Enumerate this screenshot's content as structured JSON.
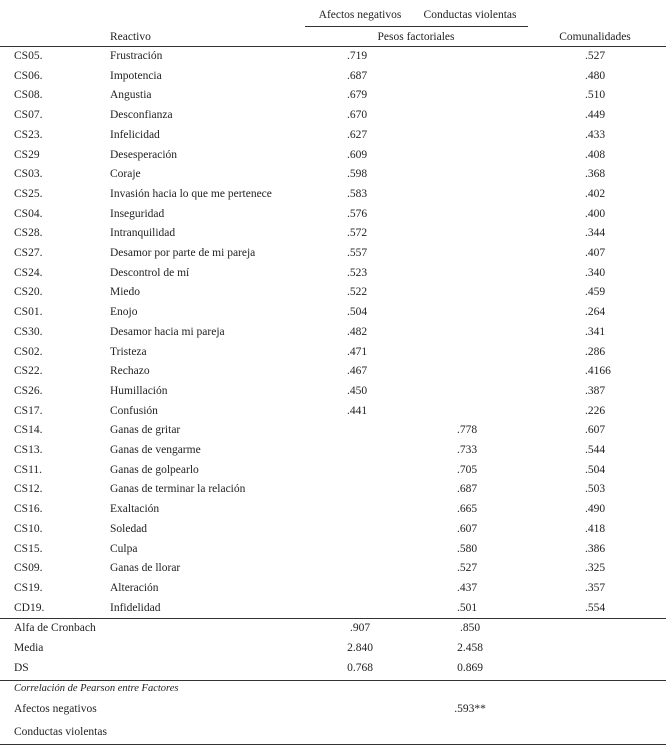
{
  "table": {
    "header": {
      "factor1": "Afectos negativos",
      "factor2": "Conductas violentas",
      "item": "Reactivo",
      "loadings": "Pesos factoriales",
      "communality": "Comunalidades"
    },
    "rows": [
      [
        "CS05.",
        "Frustración",
        ".719",
        null,
        ".527"
      ],
      [
        "CS06.",
        "Impotencia",
        ".687",
        null,
        ".480"
      ],
      [
        "CS08.",
        "Angustia",
        ".679",
        null,
        ".510"
      ],
      [
        "CS07.",
        "Desconfianza",
        ".670",
        null,
        ".449"
      ],
      [
        "CS23.",
        "Infelicidad",
        ".627",
        null,
        ".433"
      ],
      [
        "CS29",
        "Desesperación",
        ".609",
        null,
        ".408"
      ],
      [
        "CS03.",
        "Coraje",
        ".598",
        null,
        ".368"
      ],
      [
        "CS25.",
        "Invasión hacia lo que me pertenece",
        ".583",
        null,
        ".402"
      ],
      [
        "CS04.",
        "Inseguridad",
        ".576",
        null,
        ".400"
      ],
      [
        "CS28.",
        "Intranquilidad",
        ".572",
        null,
        ".344"
      ],
      [
        "CS27.",
        "Desamor por parte de mi pareja",
        ".557",
        null,
        ".407"
      ],
      [
        "CS24.",
        "Descontrol de mí",
        ".523",
        null,
        ".340"
      ],
      [
        "CS20.",
        "Miedo",
        ".522",
        null,
        ".459"
      ],
      [
        "CS01.",
        "Enojo",
        ".504",
        null,
        ".264"
      ],
      [
        "CS30.",
        "Desamor hacia mi pareja",
        ".482",
        null,
        ".341"
      ],
      [
        "CS02.",
        "Tristeza",
        ".471",
        null,
        ".286"
      ],
      [
        "CS22.",
        "Rechazo",
        ".467",
        null,
        ".4166"
      ],
      [
        "CS26.",
        "Humillación",
        ".450",
        null,
        ".387"
      ],
      [
        "CS17.",
        "Confusión",
        ".441",
        null,
        ".226"
      ],
      [
        "CS14.",
        "Ganas de gritar",
        null,
        ".778",
        ".607"
      ],
      [
        "CS13.",
        "Ganas de vengarme",
        null,
        ".733",
        ".544"
      ],
      [
        "CS11.",
        "Ganas de golpearlo",
        null,
        ".705",
        ".504"
      ],
      [
        "CS12.",
        "Ganas de terminar la relación",
        null,
        ".687",
        ".503"
      ],
      [
        "CS16.",
        "Exaltación",
        null,
        ".665",
        ".490"
      ],
      [
        "CS10.",
        "Soledad",
        null,
        ".607",
        ".418"
      ],
      [
        "CS15.",
        "Culpa",
        null,
        ".580",
        ".386"
      ],
      [
        "CS09.",
        "Ganas de llorar",
        null,
        ".527",
        ".325"
      ],
      [
        "CS19.",
        "Alteración",
        null,
        ".437",
        ".357"
      ],
      [
        "CD19.",
        "Infidelidad",
        null,
        ".501",
        ".554"
      ]
    ],
    "summary": [
      [
        "Alfa de Cronbach",
        ".907",
        ".850"
      ],
      [
        "Media",
        "2.840",
        "2.458"
      ],
      [
        "DS",
        "0.768",
        "0.869"
      ]
    ],
    "correlation": {
      "title": "Correlación de Pearson entre Factores",
      "rows": [
        [
          "Afectos negativos",
          ".593**"
        ],
        [
          "Conductas violentas"
        ]
      ]
    }
  }
}
